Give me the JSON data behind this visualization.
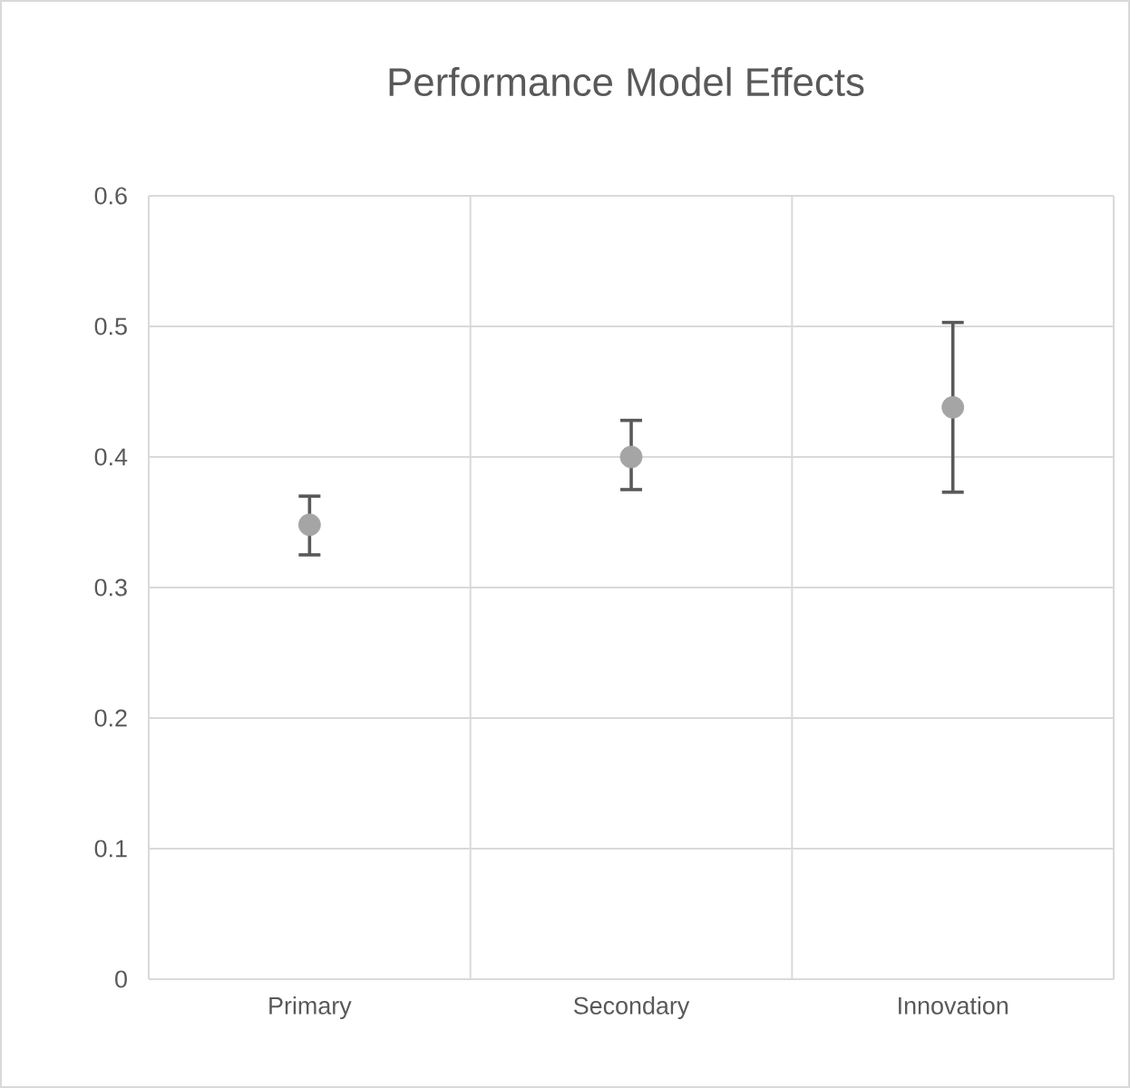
{
  "chart_data": {
    "type": "scatter",
    "title": "Performance Model Effects",
    "categories": [
      "Primary",
      "Secondary",
      "Innovation"
    ],
    "values": [
      0.348,
      0.4,
      0.438
    ],
    "errors": [
      [
        0.325,
        0.37
      ],
      [
        0.375,
        0.428
      ],
      [
        0.373,
        0.503
      ]
    ],
    "color": "#a5a5a5",
    "marker": "circle",
    "grid": true,
    "ylim": [
      0,
      0.6
    ],
    "yticks": [
      0,
      0.1,
      0.2,
      0.3,
      0.4,
      0.5,
      0.6
    ]
  }
}
